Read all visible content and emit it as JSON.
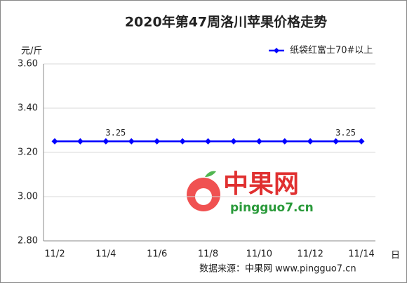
{
  "chart_data": {
    "type": "line",
    "title": "2020年第47周洛川苹果价格走势",
    "y_label": "元/斤",
    "x_label": "日",
    "source": "数据来源：中果网 www.pingguo7.cn",
    "watermark": "中果网",
    "watermark_url": "pingguo7.cn",
    "categories": [
      "11/2",
      null,
      "11/4",
      null,
      "11/6",
      null,
      "11/8",
      null,
      "11/10",
      null,
      "11/12",
      null,
      "11/14"
    ],
    "series": [
      {
        "name": "纸袋红富士70#以上",
        "color": "#0000ff",
        "values": [
          3.25,
          3.25,
          3.25,
          3.25,
          3.25,
          3.25,
          3.25,
          3.25,
          3.25,
          3.25,
          3.25,
          3.25,
          3.25
        ],
        "value_labels": [
          null,
          null,
          "3.25",
          null,
          null,
          null,
          null,
          null,
          null,
          null,
          null,
          "3.25",
          null
        ]
      }
    ],
    "ylim": [
      2.8,
      3.6
    ],
    "yticks": [
      {
        "value": 2.8,
        "label": "2.80"
      },
      {
        "value": 3.0,
        "label": "3.00"
      },
      {
        "value": 3.2,
        "label": "3.20"
      },
      {
        "value": 3.4,
        "label": "3.40"
      },
      {
        "value": 3.6,
        "label": "3.60"
      }
    ],
    "grid": true,
    "legend": "top-right"
  }
}
